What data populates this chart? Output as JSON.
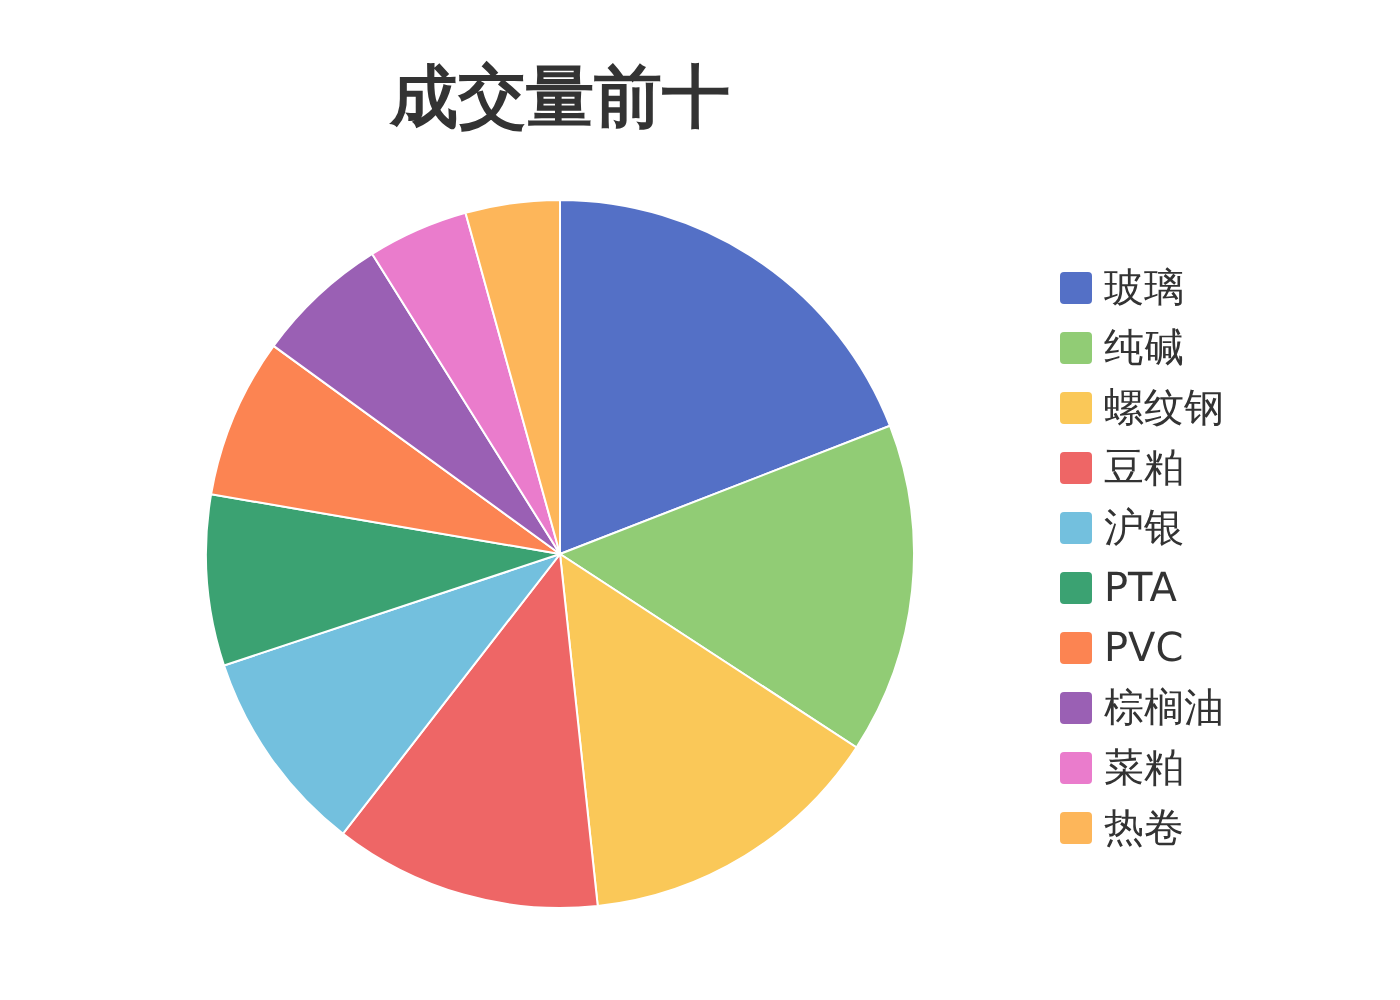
{
  "chart_data": {
    "type": "pie",
    "title": "成交量前十",
    "categories": [
      "玻璃",
      "纯碱",
      "螺纹钢",
      "豆粕",
      "沪银",
      "PTA",
      "PVC",
      "棕榈油",
      "菜粕",
      "热卷"
    ],
    "values": [
      19.1,
      15.1,
      14.1,
      12.2,
      9.4,
      7.8,
      7.3,
      6.1,
      4.6,
      4.3
    ],
    "colors": [
      "#5470c6",
      "#91cc75",
      "#fac858",
      "#ee6666",
      "#73c0de",
      "#3ba272",
      "#fc8452",
      "#9a60b4",
      "#ea7ccc",
      "#fdb65a"
    ],
    "legend": "right"
  }
}
